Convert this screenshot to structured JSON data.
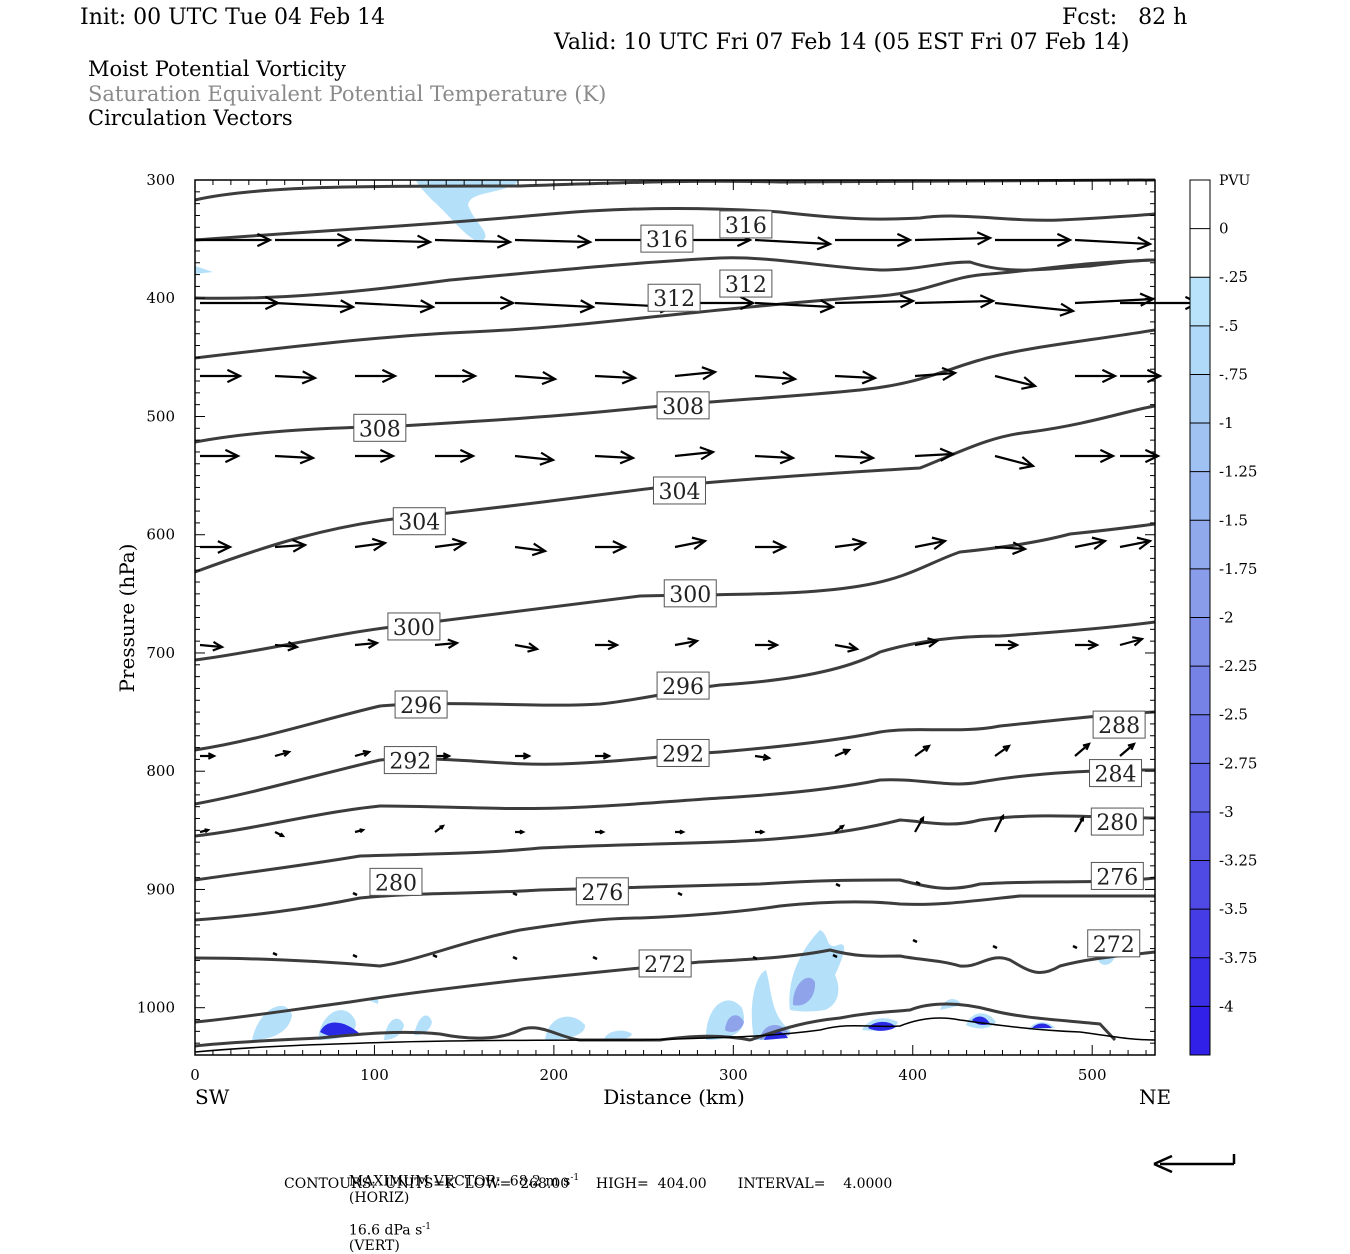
{
  "header": {
    "init": "Init: 00 UTC Tue 04 Feb 14",
    "fcst": "Fcst:   82 h",
    "valid": "Valid: 10 UTC Fri 07 Feb 14 (05 EST Fri 07 Feb 14)",
    "title1": "Moist Potential Vorticity",
    "title2": "Saturation Equivalent Potential Temperature (K)",
    "title3": "Circulation Vectors"
  },
  "footer": {
    "max_vector": "MAXIMUM VECTOR:  68.2 m s",
    "horiz": "(HORIZ)",
    "vert_val": "16.6 dPa s",
    "vert": "(VERT)",
    "contours": "CONTOURS:  UNITS=K  LOW=  268.00      HIGH=  404.00       INTERVAL=    4.0000"
  },
  "colors": {
    "contour": "#3c3c3c",
    "vector": "#000000",
    "pv_light": "#b4e0fa",
    "pv_dark": "#2a2ae6"
  },
  "chart_data": {
    "type": "cross-section",
    "xlabel": "Distance (km)",
    "ylabel": "Pressure (hPa)",
    "xlim": [
      0,
      535
    ],
    "ylim": [
      300,
      1040
    ],
    "x_ticks": [
      "0",
      "100",
      "200",
      "300",
      "400",
      "500"
    ],
    "y_ticks": [
      "300",
      "400",
      "500",
      "600",
      "700",
      "800",
      "900",
      "1000"
    ],
    "left_end": "SW",
    "right_end": "NE",
    "contour_labels": [
      {
        "text": "316",
        "x": 307,
        "y": 338
      },
      {
        "text": "316",
        "x": 263,
        "y": 350
      },
      {
        "text": "312",
        "x": 307,
        "y": 388
      },
      {
        "text": "312",
        "x": 267,
        "y": 400
      },
      {
        "text": "308",
        "x": 272,
        "y": 491
      },
      {
        "text": "308",
        "x": 103,
        "y": 510
      },
      {
        "text": "304",
        "x": 270,
        "y": 563
      },
      {
        "text": "304",
        "x": 125,
        "y": 589
      },
      {
        "text": "300",
        "x": 276,
        "y": 650
      },
      {
        "text": "300",
        "x": 122,
        "y": 678
      },
      {
        "text": "296",
        "x": 272,
        "y": 728
      },
      {
        "text": "296",
        "x": 126,
        "y": 744
      },
      {
        "text": "292",
        "x": 272,
        "y": 785
      },
      {
        "text": "292",
        "x": 120,
        "y": 791
      },
      {
        "text": "288",
        "x": 515,
        "y": 761
      },
      {
        "text": "284",
        "x": 513,
        "y": 802
      },
      {
        "text": "280",
        "x": 514,
        "y": 843
      },
      {
        "text": "280",
        "x": 112,
        "y": 894
      },
      {
        "text": "276",
        "x": 227,
        "y": 902
      },
      {
        "text": "276",
        "x": 514,
        "y": 889
      },
      {
        "text": "272",
        "x": 262,
        "y": 963
      },
      {
        "text": "272",
        "x": 512,
        "y": 946
      }
    ],
    "colorbar": {
      "label": "PVU",
      "levels": [
        "0",
        "-.25",
        "-.5",
        "-.75",
        "-1",
        "-1.25",
        "-1.5",
        "-1.75",
        "-2",
        "-2.25",
        "-2.5",
        "-2.75",
        "-3",
        "-3.25",
        "-3.5",
        "-3.75",
        "-4"
      ],
      "colors": [
        "#ffffff",
        "#ffffff",
        "#b9e3fb",
        "#b0d8f8",
        "#a8cdf5",
        "#a0c2f2",
        "#98b6ef",
        "#90a9ec",
        "#889ce9",
        "#7f8fe7",
        "#7682e6",
        "#6c74e5",
        "#6366e5",
        "#5958e5",
        "#4f4ae6",
        "#453ce6",
        "#3b2ee7",
        "#3120e8"
      ]
    }
  }
}
